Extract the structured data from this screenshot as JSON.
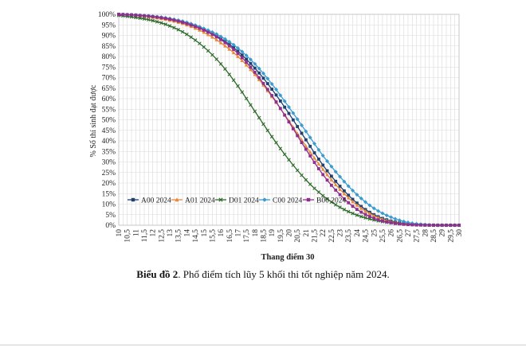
{
  "chart_data": {
    "type": "line",
    "xlabel": "Thang điểm 30",
    "ylabel": "% Số thí sinh đạt được",
    "x_start": 10,
    "x_end": 30,
    "x_step": 0.25,
    "x_ticks": [
      "10",
      "10,5",
      "11",
      "11,5",
      "12",
      "12,5",
      "13",
      "13,5",
      "14",
      "14,5",
      "15",
      "15,5",
      "16",
      "16,5",
      "17",
      "17,5",
      "18",
      "18,5",
      "19",
      "19,5",
      "20",
      "20,5",
      "21",
      "21,5",
      "22",
      "22,5",
      "23",
      "23,5",
      "24",
      "24,5",
      "25",
      "25,5",
      "26",
      "26,5",
      "27",
      "27,5",
      "28",
      "28,5",
      "29",
      "29,5",
      "30"
    ],
    "y_ticks": [
      "0%",
      "5%",
      "10%",
      "15%",
      "20%",
      "25%",
      "30%",
      "35%",
      "40%",
      "45%",
      "50%",
      "55%",
      "60%",
      "65%",
      "70%",
      "75%",
      "80%",
      "85%",
      "90%",
      "95%",
      "100%"
    ],
    "ylim": [
      0,
      100
    ],
    "grid": true,
    "legend_position": "bottom-left",
    "series": [
      {
        "name": "A00 2024",
        "color": "#1f3f6e",
        "marker": "square",
        "x": [
          10,
          11,
          12,
          13,
          14,
          15,
          16,
          17,
          18,
          19,
          20,
          21,
          22,
          23,
          24,
          25,
          26,
          27,
          28,
          29,
          30
        ],
        "y": [
          100,
          99.6,
          98.8,
          97.6,
          95.7,
          92.7,
          88.5,
          82.5,
          74.5,
          64.5,
          53,
          40.5,
          28.5,
          18.5,
          10.5,
          5,
          2,
          0.6,
          0.1,
          0,
          0
        ]
      },
      {
        "name": "A01 2024",
        "color": "#e8893a",
        "marker": "triangle",
        "x": [
          10,
          11,
          12,
          13,
          14,
          15,
          16,
          17,
          18,
          19,
          20,
          21,
          22,
          23,
          24,
          25,
          26,
          27,
          28,
          29,
          30
        ],
        "y": [
          100,
          99.5,
          98.6,
          97.2,
          95,
          91.5,
          86.5,
          80,
          71.5,
          61,
          49.5,
          37.5,
          26.5,
          17,
          9.5,
          4.5,
          1.7,
          0.5,
          0.1,
          0,
          0
        ]
      },
      {
        "name": "D01 2024",
        "color": "#2e6b2a",
        "marker": "cross",
        "x": [
          10,
          11,
          12,
          13,
          14,
          15,
          16,
          17,
          18,
          19,
          20,
          21,
          22,
          23,
          24,
          25,
          26,
          27,
          28,
          29,
          30
        ],
        "y": [
          99.5,
          98.5,
          97,
          94.5,
          90.5,
          84.5,
          76.5,
          66,
          54,
          42,
          31,
          21.5,
          14,
          8.5,
          4.8,
          2.5,
          1.1,
          0.4,
          0.1,
          0,
          0
        ]
      },
      {
        "name": "C00 2024",
        "color": "#3a9bd0",
        "marker": "diamond",
        "x": [
          10,
          11,
          12,
          13,
          14,
          15,
          16,
          17,
          18,
          19,
          20,
          21,
          22,
          23,
          24,
          25,
          26,
          27,
          28,
          29,
          30
        ],
        "y": [
          100,
          99.7,
          99.1,
          98,
          96.2,
          93.3,
          89.5,
          84,
          76.5,
          67,
          56,
          44.5,
          33,
          23,
          14.5,
          8,
          3.8,
          1.3,
          0.3,
          0,
          0
        ]
      },
      {
        "name": "B00 2024",
        "color": "#8e2f8e",
        "marker": "square",
        "x": [
          10,
          11,
          12,
          13,
          14,
          15,
          16,
          17,
          18,
          19,
          20,
          21,
          22,
          23,
          24,
          25,
          26,
          27,
          28,
          29,
          30
        ],
        "y": [
          100,
          99.6,
          98.9,
          97.7,
          95.6,
          92.5,
          88,
          81.5,
          72.5,
          61.5,
          49,
          36,
          24,
          14.5,
          7.5,
          3.3,
          1.2,
          0.3,
          0.05,
          0,
          0
        ]
      }
    ]
  },
  "caption": {
    "bold": "Biểu đồ 2",
    "rest": ". Phổ điểm tích lũy 5 khối thi tốt nghiệp năm 2024."
  }
}
